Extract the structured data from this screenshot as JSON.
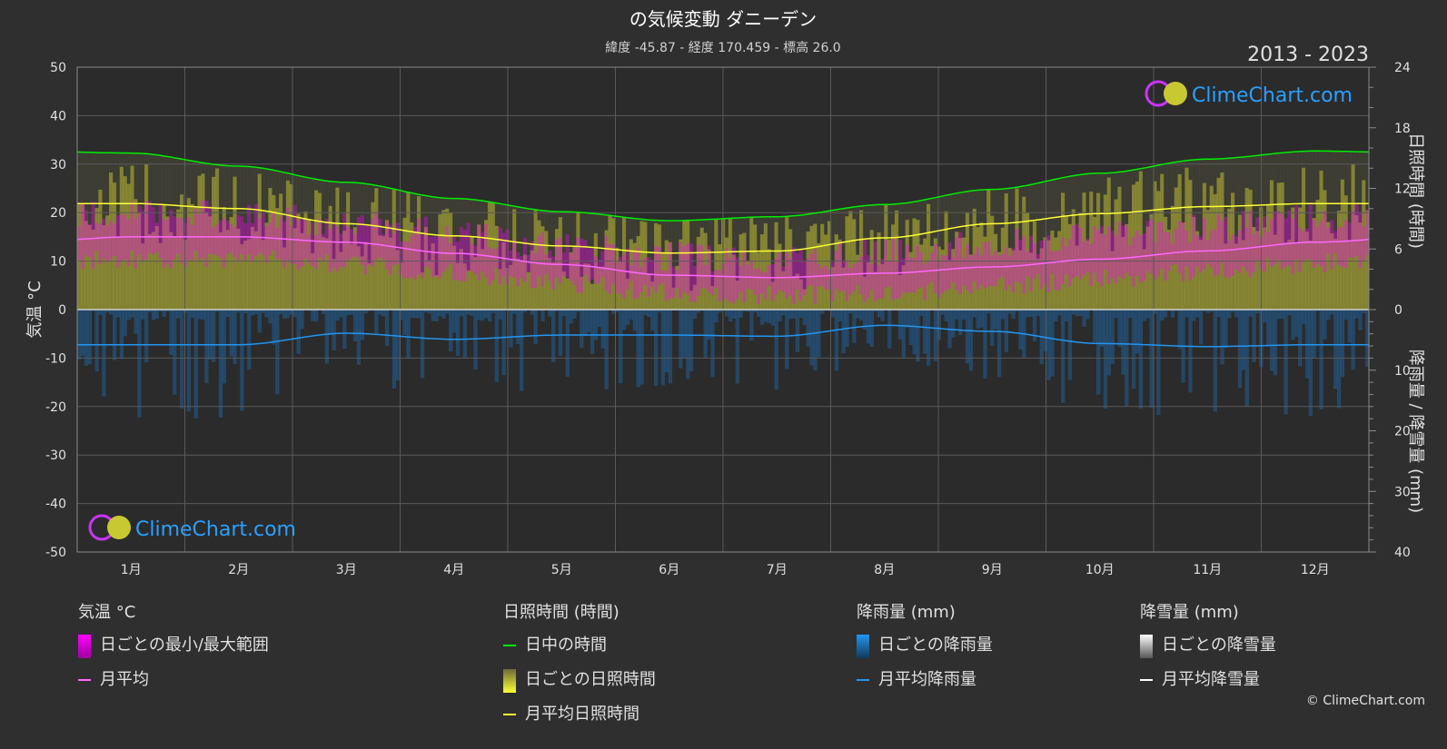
{
  "title": "の気候変動 ダニーデン",
  "subtitle": "緯度 -45.87 - 経度 170.459 - 標高 26.0",
  "years": "2013 - 2023",
  "watermark": "ClimeChart.com",
  "copyright": "© ClimeChart.com",
  "colors": {
    "background": "#2f2f2f",
    "plot_bg": "#2a2a2a",
    "grid": "#5a5a5a",
    "temp_range": "#ff00ff",
    "temp_avg": "#ff66ff",
    "daylight": "#00ee00",
    "sunshine_bar": "#c8c832",
    "sunshine_avg": "#ffff33",
    "rain_bar": "#1e6bb0",
    "rain_avg": "#2196f3",
    "snow_avg": "#ffffff",
    "watermark": "#2aa0ff"
  },
  "chart_data": {
    "type": "line",
    "x": [
      "1月",
      "2月",
      "3月",
      "4月",
      "5月",
      "6月",
      "7月",
      "8月",
      "9月",
      "10月",
      "11月",
      "12月"
    ],
    "left_axis": {
      "label": "気温 °C",
      "range": [
        -50,
        50
      ],
      "ticks": [
        "50",
        "40",
        "30",
        "20",
        "10",
        "0",
        "-10",
        "-20",
        "-30",
        "-40",
        "-50"
      ]
    },
    "right_axis_top": {
      "label": "日照時間 (時間)",
      "range": [
        0,
        24
      ],
      "ticks": [
        "24",
        "18",
        "12",
        "6",
        "0"
      ]
    },
    "right_axis_bottom": {
      "label": "降雨量 / 降雪量 (mm)",
      "range": [
        0,
        40
      ],
      "ticks": [
        "0",
        "10",
        "20",
        "30",
        "40"
      ]
    },
    "series": [
      {
        "name": "日中の時間",
        "unit": "hours",
        "values": [
          15.5,
          14.2,
          12.6,
          11.0,
          9.7,
          8.8,
          9.2,
          10.4,
          11.9,
          13.5,
          14.9,
          15.7
        ]
      },
      {
        "name": "月平均日照時間",
        "unit": "hours",
        "values": [
          10.5,
          10.0,
          8.5,
          7.3,
          6.3,
          5.6,
          5.8,
          7.1,
          8.5,
          9.5,
          10.2,
          10.5
        ]
      },
      {
        "name": "月平均",
        "unit": "°C",
        "values": [
          15.0,
          15.0,
          13.9,
          11.6,
          9.3,
          7.1,
          6.6,
          7.5,
          8.8,
          10.4,
          12.1,
          13.9
        ]
      },
      {
        "name": "日ごとの最小/最大範囲",
        "unit": "°C",
        "min": [
          10.5,
          10.5,
          9.5,
          7.5,
          5.5,
          3.5,
          3.0,
          3.5,
          4.8,
          6.3,
          7.8,
          9.5
        ],
        "max": [
          20.0,
          19.5,
          18.0,
          16.0,
          13.0,
          11.0,
          10.5,
          11.8,
          13.5,
          15.5,
          17.0,
          19.0
        ]
      },
      {
        "name": "月平均降雨量",
        "unit": "mm",
        "values": [
          5.8,
          5.8,
          3.9,
          4.9,
          4.2,
          4.2,
          4.4,
          2.6,
          3.6,
          5.6,
          6.1,
          5.8
        ]
      },
      {
        "name": "月平均降雪量",
        "unit": "mm",
        "values": [
          0,
          0,
          0,
          0,
          0,
          0,
          0,
          0,
          0,
          0,
          0,
          0
        ]
      }
    ],
    "grid": true
  },
  "legend": {
    "temp": {
      "head": "気温 °C",
      "range": "日ごとの最小/最大範囲",
      "avg": "月平均"
    },
    "sun": {
      "head": "日照時間 (時間)",
      "daylight": "日中の時間",
      "daily": "日ごとの日照時間",
      "avg": "月平均日照時間"
    },
    "rain": {
      "head": "降雨量 (mm)",
      "daily": "日ごとの降雨量",
      "avg": "月平均降雨量"
    },
    "snow": {
      "head": "降雪量 (mm)",
      "daily": "日ごとの降雪量",
      "avg": "月平均降雪量"
    }
  }
}
